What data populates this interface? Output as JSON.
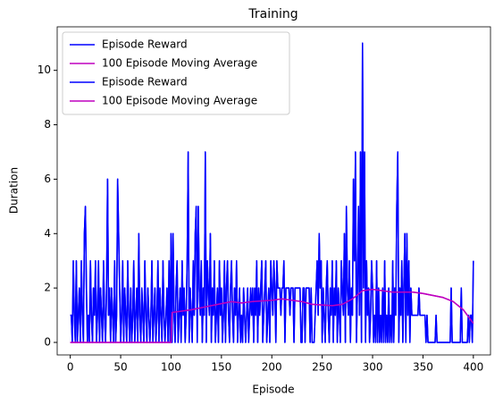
{
  "chart_data": {
    "type": "line",
    "title": "Training",
    "x_label": "Episode",
    "y_label": "Duration",
    "xlim": [
      -13,
      417
    ],
    "xticks": [
      0,
      50,
      100,
      150,
      200,
      250,
      300,
      350,
      400
    ],
    "ylim": [
      -0.46,
      11.6
    ],
    "yticks": [
      0,
      2,
      4,
      6,
      8,
      10
    ],
    "legend": "upper left",
    "grid": false,
    "series": [
      {
        "name": "Episode Reward",
        "color": "#0000ff",
        "values": [
          1,
          1,
          0,
          3,
          1,
          0,
          3,
          0,
          1,
          2,
          0,
          3,
          1,
          0,
          4,
          5,
          2,
          0,
          1,
          0,
          3,
          1,
          0,
          2,
          1,
          3,
          0,
          1,
          3,
          0,
          2,
          1,
          0,
          3,
          1,
          0,
          2,
          6,
          1,
          2,
          0,
          2,
          1,
          0,
          3,
          0,
          1,
          6,
          4,
          2,
          0,
          1,
          3,
          0,
          2,
          1,
          0,
          3,
          1,
          0,
          2,
          0,
          1,
          3,
          0,
          1,
          2,
          0,
          4,
          1,
          0,
          2,
          1,
          0,
          3,
          1,
          0,
          2,
          1,
          0,
          1,
          3,
          0,
          1,
          2,
          0,
          1,
          3,
          0,
          2,
          1,
          0,
          3,
          1,
          0,
          1,
          2,
          0,
          3,
          0,
          4,
          0,
          4,
          1,
          0,
          2,
          3,
          0,
          1,
          2,
          0,
          3,
          1,
          2,
          0,
          1,
          3,
          7,
          0,
          2,
          1,
          0,
          3,
          1,
          4,
          5,
          0,
          5,
          2,
          1,
          3,
          0,
          2,
          1,
          7,
          0,
          3,
          2,
          1,
          4,
          0,
          2,
          1,
          3,
          0,
          1,
          2,
          0,
          3,
          1,
          2,
          0,
          1,
          3,
          0,
          2,
          3,
          1,
          0,
          2,
          3,
          1,
          0,
          2,
          1,
          3,
          0,
          1,
          2,
          0,
          1,
          0,
          2,
          1,
          0,
          1,
          2,
          0,
          1,
          2,
          1,
          2,
          0,
          2,
          1,
          3,
          0,
          2,
          1,
          2,
          3,
          0,
          1,
          2,
          3,
          0,
          1,
          2,
          0,
          3,
          2,
          1,
          3,
          2,
          0,
          3,
          2,
          2,
          2,
          1,
          2,
          2,
          3,
          0,
          2,
          2,
          2,
          2,
          1,
          2,
          2,
          2,
          0,
          2,
          2,
          2,
          2,
          2,
          2,
          0,
          0,
          2,
          2,
          0,
          2,
          2,
          2,
          2,
          0,
          2,
          0,
          0,
          0,
          1,
          2,
          3,
          1,
          4,
          2,
          3,
          0,
          2,
          1,
          0,
          2,
          3,
          1,
          0,
          2,
          1,
          3,
          0,
          2,
          1,
          3,
          0,
          2,
          1,
          0,
          3,
          2,
          1,
          4,
          0,
          5,
          2,
          1,
          3,
          0,
          2,
          1,
          6,
          3,
          7,
          0,
          2,
          5,
          1,
          7,
          0,
          11,
          2,
          7,
          0,
          3,
          1,
          2,
          0,
          1,
          3,
          2,
          0,
          1,
          0,
          3,
          0,
          2,
          0,
          1,
          0,
          2,
          0,
          3,
          0,
          1,
          0,
          2,
          0,
          1,
          0,
          3,
          0,
          2,
          1,
          5,
          7,
          0,
          2,
          1,
          3,
          0,
          2,
          4,
          0,
          4,
          1,
          3,
          0,
          2,
          1,
          1,
          1,
          1,
          1,
          1,
          1,
          2,
          1,
          1,
          1,
          1,
          1,
          1,
          0,
          1,
          0,
          0,
          0,
          0,
          0,
          0,
          0,
          0,
          1,
          0,
          0,
          0,
          0,
          0,
          0,
          0,
          0,
          0,
          0,
          0,
          0,
          0,
          0,
          2,
          0,
          0,
          0,
          0,
          0,
          0,
          0,
          0,
          0,
          2,
          0,
          0,
          0,
          0,
          0,
          0,
          1,
          0,
          1,
          1,
          0,
          3
        ]
      },
      {
        "name": "100 Episode Moving Average",
        "color": "#bf00bf",
        "x": [
          0,
          100,
          101,
          120,
          140,
          160,
          170,
          180,
          200,
          210,
          230,
          240,
          260,
          270,
          280,
          290,
          300,
          320,
          340,
          350,
          370,
          380,
          390,
          400
        ],
        "values": [
          0,
          0,
          1.1,
          1.2,
          1.35,
          1.5,
          1.45,
          1.5,
          1.55,
          1.6,
          1.5,
          1.4,
          1.35,
          1.4,
          1.6,
          1.9,
          1.95,
          1.85,
          1.85,
          1.8,
          1.65,
          1.5,
          1.2,
          0.7
        ]
      },
      {
        "name": "Episode Reward",
        "color": "#0000ff",
        "values": [
          1,
          1,
          0,
          3,
          1,
          0,
          3,
          0,
          1,
          2,
          0,
          3,
          1,
          0,
          4,
          5,
          2,
          0,
          1,
          0,
          3,
          1,
          0,
          2,
          1,
          3,
          0,
          1,
          3,
          0,
          2,
          1,
          0,
          3,
          1,
          0,
          2,
          6,
          1,
          2,
          0,
          2,
          1,
          0,
          3,
          0,
          1,
          6,
          4,
          2,
          0,
          1,
          3,
          0,
          2,
          1,
          0,
          3,
          1,
          0,
          2,
          0,
          1,
          3,
          0,
          1,
          2,
          0,
          4,
          1,
          0,
          2,
          1,
          0,
          3,
          1,
          0,
          2,
          1,
          0,
          1,
          3,
          0,
          1,
          2,
          0,
          1,
          3,
          0,
          2,
          1,
          0,
          3,
          1,
          0,
          1,
          2,
          0,
          3,
          0,
          4,
          0,
          4,
          1,
          0,
          2,
          3,
          0,
          1,
          2,
          0,
          3,
          1,
          2,
          0,
          1,
          3,
          7,
          0,
          2,
          1,
          0,
          3,
          1,
          4,
          5,
          0,
          5,
          2,
          1,
          3,
          0,
          2,
          1,
          7,
          0,
          3,
          2,
          1,
          4,
          0,
          2,
          1,
          3,
          0,
          1,
          2,
          0,
          3,
          1,
          2,
          0,
          1,
          3,
          0,
          2,
          3,
          1,
          0,
          2,
          3,
          1,
          0,
          2,
          1,
          3,
          0,
          1,
          2,
          0,
          1,
          0,
          2,
          1,
          0,
          1,
          2,
          0,
          1,
          2,
          1,
          2,
          0,
          2,
          1,
          3,
          0,
          2,
          1,
          2,
          3,
          0,
          1,
          2,
          3,
          0,
          1,
          2,
          0,
          3,
          2,
          1,
          3,
          2,
          0,
          3,
          2,
          2,
          2,
          1,
          2,
          2,
          3,
          0,
          2,
          2,
          2,
          2,
          1,
          2,
          2,
          2,
          0,
          2,
          2,
          2,
          2,
          2,
          2,
          0,
          0,
          2,
          2,
          0,
          2,
          2,
          2,
          2,
          0,
          2,
          0,
          0,
          0,
          1,
          2,
          3,
          1,
          4,
          2,
          3,
          0,
          2,
          1,
          0,
          2,
          3,
          1,
          0,
          2,
          1,
          3,
          0,
          2,
          1,
          3,
          0,
          2,
          1,
          0,
          3,
          2,
          1,
          4,
          0,
          5,
          2,
          1,
          3,
          0,
          2,
          1,
          6,
          3,
          7,
          0,
          2,
          5,
          1,
          7,
          0,
          11,
          2,
          7,
          0,
          3,
          1,
          2,
          0,
          1,
          3,
          2,
          0,
          1,
          0,
          3,
          0,
          2,
          0,
          1,
          0,
          2,
          0,
          3,
          0,
          1,
          0,
          2,
          0,
          1,
          0,
          3,
          0,
          2,
          1,
          5,
          7,
          0,
          2,
          1,
          3,
          0,
          2,
          4,
          0,
          4,
          1,
          3,
          0,
          2,
          1,
          1,
          1,
          1,
          1,
          1,
          1,
          2,
          1,
          1,
          1,
          1,
          1,
          1,
          0,
          1,
          0,
          0,
          0,
          0,
          0,
          0,
          0,
          0,
          1,
          0,
          0,
          0,
          0,
          0,
          0,
          0,
          0,
          0,
          0,
          0,
          0,
          0,
          0,
          2,
          0,
          0,
          0,
          0,
          0,
          0,
          0,
          0,
          0,
          2,
          0,
          0,
          0,
          0,
          0,
          0,
          1,
          0,
          1,
          1,
          0,
          3
        ]
      },
      {
        "name": "100 Episode Moving Average",
        "color": "#bf00bf",
        "x": [
          0,
          100,
          101,
          120,
          140,
          160,
          170,
          180,
          200,
          210,
          230,
          240,
          260,
          270,
          280,
          290,
          300,
          320,
          340,
          350,
          370,
          380,
          390,
          400
        ],
        "values": [
          0,
          0,
          1.1,
          1.2,
          1.35,
          1.5,
          1.45,
          1.5,
          1.55,
          1.6,
          1.5,
          1.4,
          1.35,
          1.4,
          1.6,
          1.9,
          1.95,
          1.85,
          1.85,
          1.8,
          1.65,
          1.5,
          1.2,
          0.7
        ]
      }
    ]
  }
}
